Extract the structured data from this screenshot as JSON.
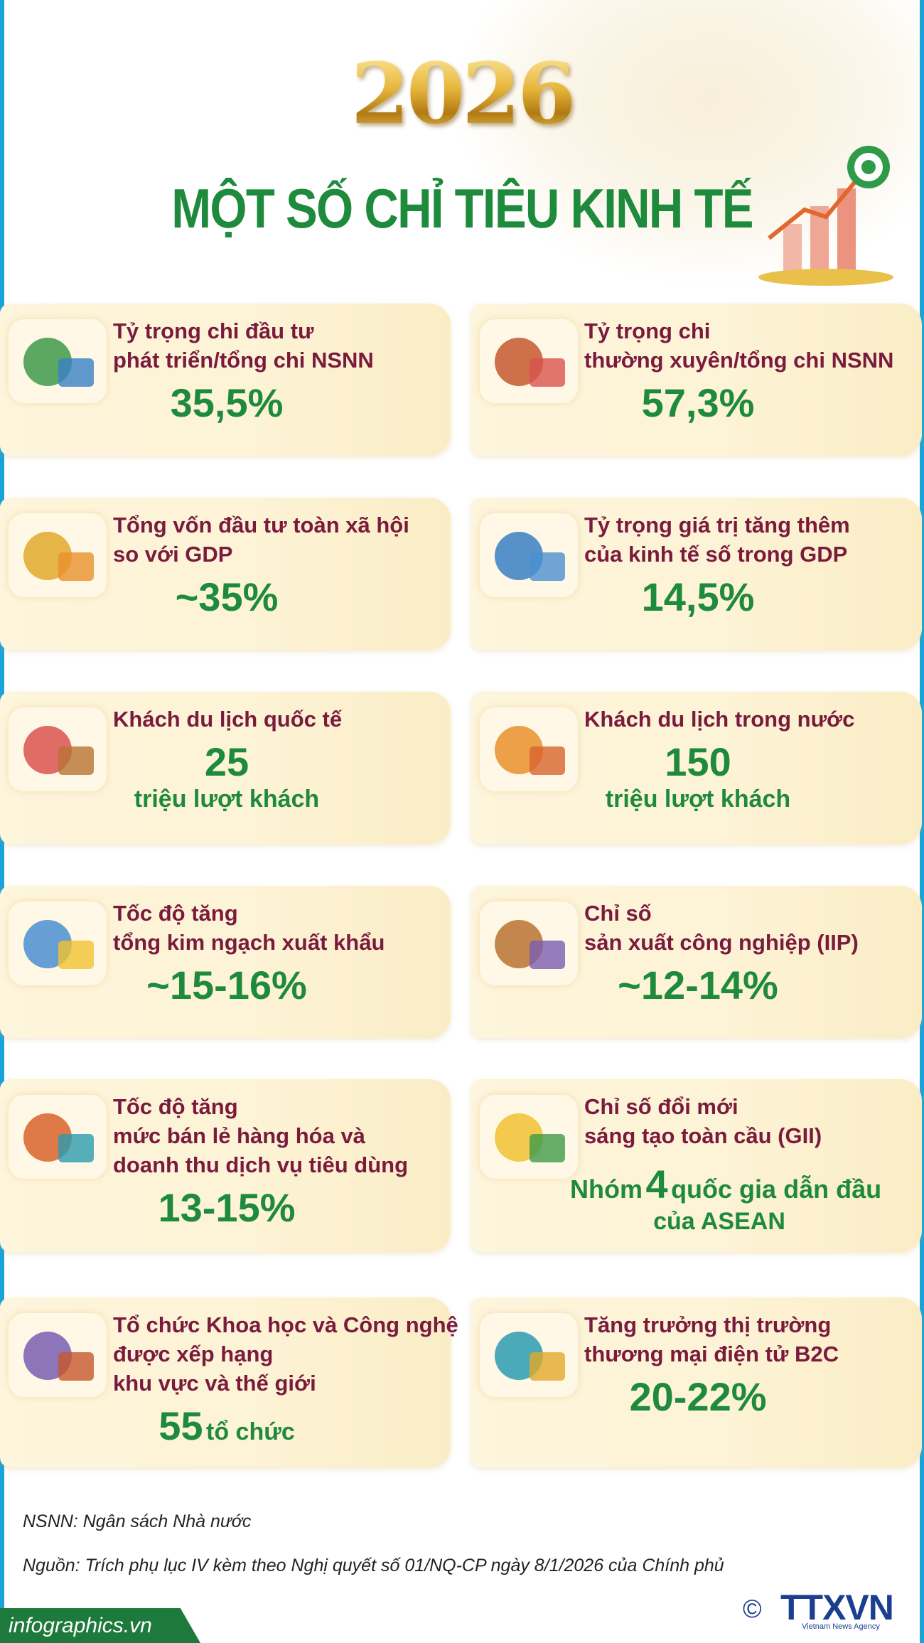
{
  "header": {
    "year": "2026",
    "title": "MỘT SỐ CHỈ TIÊU KINH TẾ"
  },
  "cards": [
    {
      "title": [
        "Tỷ trọng chi đầu tư",
        "phát triển/tổng chi NSNN"
      ],
      "value": "35,5%"
    },
    {
      "title": [
        "Tỷ trọng chi",
        "thường xuyên/tổng chi NSNN"
      ],
      "value": "57,3%"
    },
    {
      "title": [
        "Tổng vốn đầu tư toàn xã hội",
        "so với GDP"
      ],
      "value": "~35%"
    },
    {
      "title": [
        "Tỷ trọng giá trị tăng thêm",
        "của kinh tế số trong GDP"
      ],
      "value": "14,5%"
    },
    {
      "title": [
        "Khách du lịch quốc tế"
      ],
      "value": "25",
      "note": "triệu lượt khách"
    },
    {
      "title": [
        "Khách du lịch trong nước"
      ],
      "value": "150",
      "note": "triệu lượt khách"
    },
    {
      "title": [
        "Tốc độ tăng",
        "tổng kim ngạch xuất khẩu"
      ],
      "value": "~15-16%"
    },
    {
      "title": [
        "Chỉ số",
        "sản xuất công nghiệp (IIP)"
      ],
      "value": "~12-14%"
    },
    {
      "title": [
        "Tốc độ tăng",
        "mức bán lẻ hàng hóa và",
        "doanh thu dịch vụ tiêu dùng"
      ],
      "value": "13-15%"
    },
    {
      "title": [
        "Chỉ số đổi mới",
        "sáng tạo toàn cầu (GII)"
      ],
      "prefix": "Nhóm",
      "value": "4",
      "suffix": "quốc gia dẫn đầu",
      "note": "của ASEAN"
    },
    {
      "title": [
        "Tổ chức Khoa học và Công nghệ",
        "được xếp hạng",
        "khu vực và thế giới"
      ],
      "value": "55",
      "suffix": "tổ chức"
    },
    {
      "title": [
        "Tăng trưởng thị trường",
        "thương mại điện tử B2C"
      ],
      "value": "20-22%"
    }
  ],
  "footer": {
    "abbreviation": "NSNN: Ngân sách Nhà nước",
    "source": "Nguồn: Trích phụ lục IV kèm theo Nghị quyết số 01/NQ-CP ngày 8/1/2026 của Chính phủ",
    "site": "infographics.vn",
    "copyright": "©",
    "logo": "TTXVN",
    "agency": "Vietnam News Agency"
  }
}
